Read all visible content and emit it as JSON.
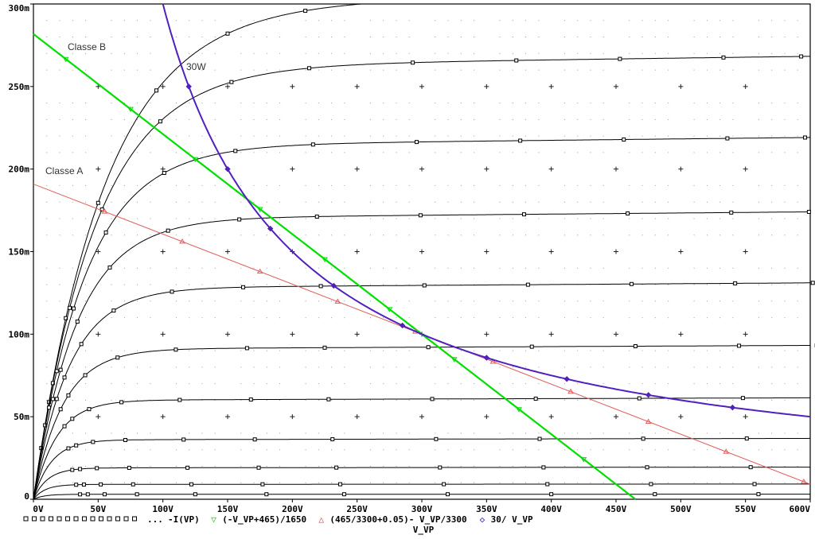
{
  "chart_data": {
    "type": "line",
    "xlabel": "V_VP",
    "x_ticks": [
      "0V",
      "50V",
      "100V",
      "150V",
      "200V",
      "250V",
      "300V",
      "350V",
      "400V",
      "450V",
      "500V",
      "550V",
      "600V"
    ],
    "y_ticks": [
      "0",
      "50m",
      "100m",
      "150m",
      "200m",
      "250m",
      "300m"
    ],
    "xlim": [
      0,
      600
    ],
    "ylim": [
      0,
      0.3
    ],
    "grid": "dotted",
    "annotations": [
      "Classe B",
      "Classe A",
      "30W"
    ],
    "legend": [
      {
        "symbol": "□",
        "label": "-I(VP)",
        "color": "#000000"
      },
      {
        "symbol": "▽",
        "label": "(-V_VP+465)/1650",
        "color": "#00c000"
      },
      {
        "symbol": "△",
        "label": "(465/3300+0.05)- V_VP/3300",
        "color": "#d04040"
      },
      {
        "symbol": "◇",
        "label": "30/ V_VP",
        "color": "#5020c0"
      }
    ],
    "plate_curves_sat_current": [
      0.3,
      0.262,
      0.214,
      0.17,
      0.128,
      0.091,
      0.06,
      0.036,
      0.019,
      0.009,
      0.003
    ],
    "plate_curves_knee_v": [
      55,
      48,
      40,
      34,
      28,
      23,
      18,
      14,
      11,
      9,
      8
    ],
    "classe_b_line": {
      "x0": 0,
      "y0": 0.2818,
      "x1": 465,
      "y1": 0
    },
    "classe_a_line": {
      "x0": 0,
      "y0": 0.1909,
      "x1": 600,
      "y1": 0.0091
    },
    "power_hyperbola": {
      "watts": 30,
      "x_from": 100,
      "x_to": 600
    }
  },
  "colors": {
    "curve": "#000000",
    "classe_b": "#00e000",
    "classe_a": "#e06060",
    "power": "#5020c0",
    "grid": "#9a9a9a"
  }
}
